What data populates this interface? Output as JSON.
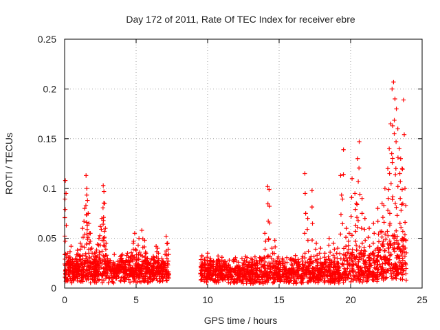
{
  "chart_data": {
    "type": "scatter",
    "title": "Day 172 of 2011, Rate Of TEC Index for receiver ebre",
    "xlabel": "GPS time / hours",
    "ylabel": "ROTI / TECUs",
    "xlim": [
      0,
      25
    ],
    "ylim": [
      0,
      0.25
    ],
    "x_ticks": [
      0,
      5,
      10,
      15,
      20,
      25
    ],
    "x_tick_labels": [
      "0",
      "5",
      "10",
      "15",
      "20",
      "25"
    ],
    "y_ticks": [
      0,
      0.05,
      0.1,
      0.15,
      0.2,
      0.25
    ],
    "y_tick_labels": [
      "0",
      "0.05",
      "0.1",
      "0.15",
      "0.2",
      "0.25"
    ],
    "grid": true,
    "marker": "+",
    "color": "#ff0000",
    "series": [
      {
        "name": "ROTI",
        "x": [
          0.05,
          0.1,
          0.2,
          0.3,
          0.45,
          0.6,
          0.75,
          0.9,
          1.0,
          1.1,
          1.25,
          1.4,
          1.5,
          1.55,
          1.6,
          1.65,
          1.7,
          1.8,
          1.9,
          2.0,
          2.1,
          2.2,
          2.3,
          2.4,
          2.5,
          2.6,
          2.7,
          2.75,
          2.8,
          2.85,
          2.9,
          3.0,
          3.2,
          3.4,
          3.6,
          3.8,
          4.0,
          4.2,
          4.4,
          4.6,
          4.8,
          4.9,
          5.0,
          5.2,
          5.4,
          5.6,
          5.7,
          5.8,
          6.0,
          6.2,
          6.4,
          6.5,
          6.6,
          6.8,
          7.0,
          7.1,
          7.2,
          9.6,
          9.8,
          10.0,
          10.2,
          10.4,
          10.6,
          10.8,
          11.0,
          11.3,
          11.6,
          11.9,
          12.2,
          12.5,
          12.8,
          13.1,
          13.4,
          13.7,
          14.0,
          14.2,
          14.3,
          14.5,
          14.7,
          14.9,
          15.1,
          15.4,
          15.7,
          16.0,
          16.3,
          16.6,
          16.8,
          17.0,
          17.3,
          17.6,
          17.9,
          18.2,
          18.5,
          18.8,
          19.1,
          19.3,
          19.5,
          19.7,
          19.9,
          20.1,
          20.3,
          20.4,
          20.5,
          20.6,
          20.8,
          21.0,
          21.3,
          21.6,
          21.9,
          22.2,
          22.4,
          22.6,
          22.7,
          22.8,
          22.9,
          23.0,
          23.1,
          23.2,
          23.3,
          23.4,
          23.5,
          23.6,
          23.7,
          23.8
        ],
        "values": [
          0.108,
          0.095,
          0.035,
          0.028,
          0.042,
          0.025,
          0.03,
          0.038,
          0.022,
          0.045,
          0.06,
          0.08,
          0.113,
          0.1,
          0.088,
          0.075,
          0.065,
          0.055,
          0.04,
          0.032,
          0.028,
          0.036,
          0.044,
          0.05,
          0.062,
          0.07,
          0.103,
          0.097,
          0.085,
          0.06,
          0.045,
          0.03,
          0.025,
          0.022,
          0.02,
          0.024,
          0.03,
          0.026,
          0.035,
          0.028,
          0.045,
          0.055,
          0.038,
          0.05,
          0.058,
          0.048,
          0.035,
          0.03,
          0.025,
          0.032,
          0.042,
          0.04,
          0.028,
          0.03,
          0.025,
          0.052,
          0.045,
          0.032,
          0.028,
          0.035,
          0.03,
          0.026,
          0.024,
          0.028,
          0.022,
          0.025,
          0.02,
          0.018,
          0.022,
          0.025,
          0.02,
          0.024,
          0.028,
          0.03,
          0.055,
          0.102,
          0.099,
          0.04,
          0.048,
          0.03,
          0.025,
          0.022,
          0.018,
          0.02,
          0.024,
          0.03,
          0.115,
          0.07,
          0.098,
          0.045,
          0.04,
          0.035,
          0.05,
          0.045,
          0.04,
          0.113,
          0.139,
          0.06,
          0.055,
          0.11,
          0.095,
          0.085,
          0.13,
          0.147,
          0.09,
          0.07,
          0.06,
          0.065,
          0.08,
          0.085,
          0.1,
          0.12,
          0.14,
          0.165,
          0.2,
          0.207,
          0.19,
          0.18,
          0.16,
          0.14,
          0.13,
          0.12,
          0.189,
          0.1
        ]
      }
    ]
  }
}
